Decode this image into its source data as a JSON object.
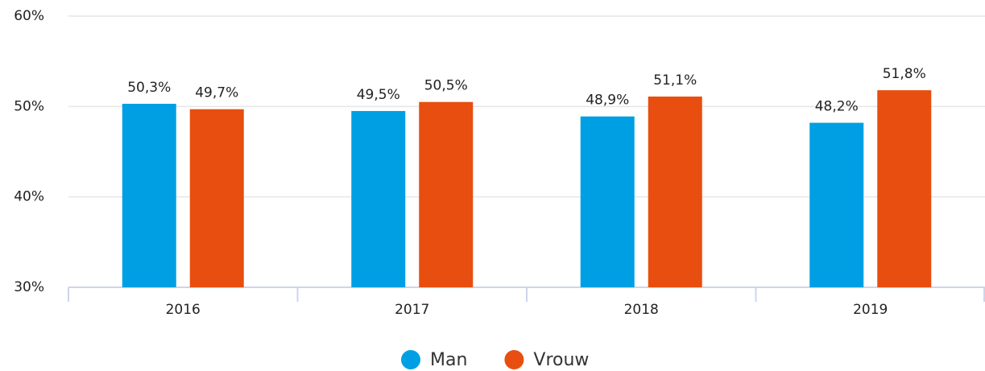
{
  "chart_data": {
    "type": "bar",
    "categories": [
      "2016",
      "2017",
      "2018",
      "2019"
    ],
    "series": [
      {
        "name": "Man",
        "color": "#009fe3",
        "values": [
          50.3,
          49.5,
          48.9,
          48.2
        ],
        "value_labels": [
          "50,3%",
          "49,5%",
          "48,9%",
          "48,2%"
        ]
      },
      {
        "name": "Vrouw",
        "color": "#e84e0f",
        "values": [
          49.7,
          50.5,
          51.1,
          51.8
        ],
        "value_labels": [
          "49,7%",
          "50,5%",
          "51,1%",
          "51,8%"
        ]
      }
    ],
    "ylim": [
      30,
      60
    ],
    "yticks": [
      {
        "value": 30,
        "label": "30%"
      },
      {
        "value": 40,
        "label": "40%"
      },
      {
        "value": 50,
        "label": "50%"
      },
      {
        "value": 60,
        "label": "60%"
      }
    ],
    "grid": true,
    "legend": "bottom"
  }
}
